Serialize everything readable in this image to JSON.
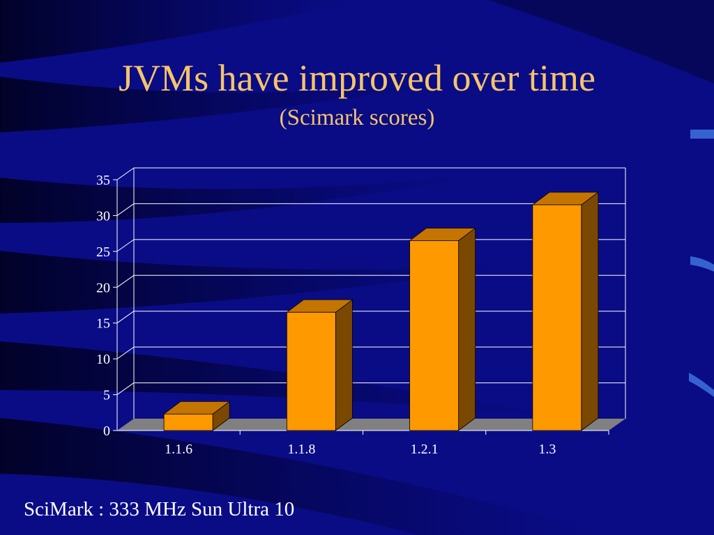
{
  "slide": {
    "title": "JVMs have improved over time",
    "subtitle": "(Scimark scores)",
    "footnote": "SciMark : 333 MHz Sun Ultra 10"
  },
  "colors": {
    "background": "#0a0c86",
    "title_text": "#f6c46a",
    "bar_front": "#ff9900",
    "bar_top": "#c47400",
    "bar_side": "#7a4800",
    "floor": "#808080",
    "gridline": "#ffffff",
    "axis_text": "#ffffff"
  },
  "chart_data": {
    "type": "bar",
    "style": "3d",
    "categories": [
      "1.1.6",
      "1.1.8",
      "1.2.1",
      "1.3"
    ],
    "values": [
      2.3,
      16.5,
      26.5,
      31.5
    ],
    "ylim": [
      0,
      35
    ],
    "yticks": [
      "0",
      "5",
      "10",
      "15",
      "20",
      "25",
      "30",
      "35"
    ],
    "grid": true,
    "legend": "none"
  }
}
